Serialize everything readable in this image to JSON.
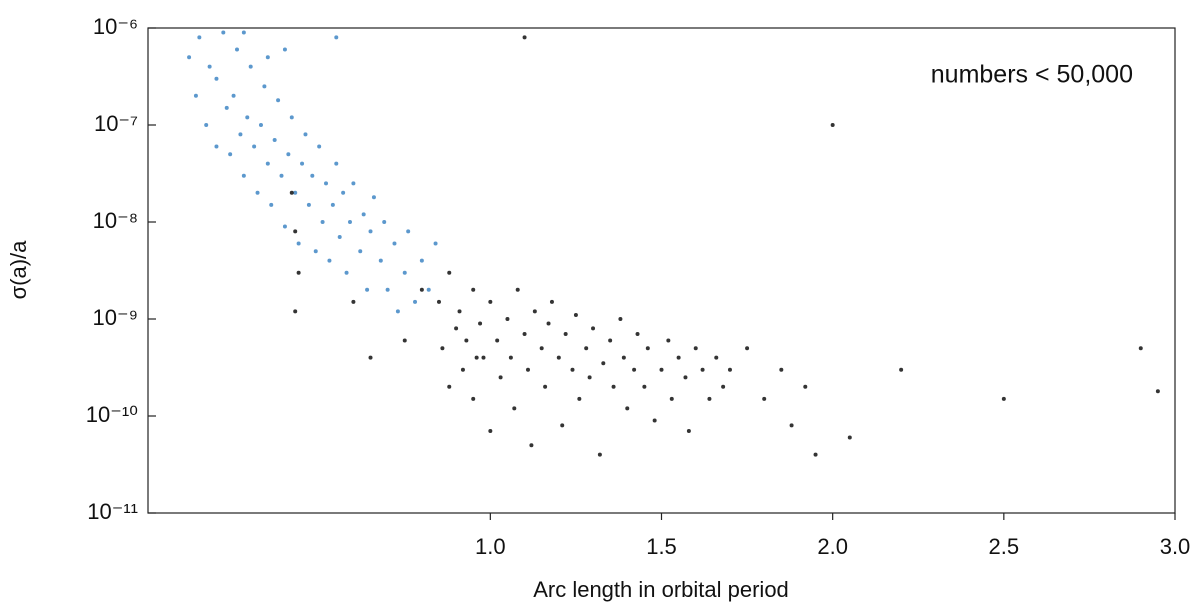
{
  "chart_data": {
    "type": "scatter",
    "annotation": "numbers < 50,000",
    "xlabel": "Arc length in orbital period",
    "ylabel": "σ(a)/a",
    "xlim": [
      0,
      3.0
    ],
    "xticks": [
      {
        "value": 1,
        "label": "1.0"
      },
      {
        "value": 1.5,
        "label": "1.5"
      },
      {
        "value": 2,
        "label": "2.0"
      },
      {
        "value": 2.5,
        "label": "2.5"
      },
      {
        "value": 3,
        "label": "3.0"
      }
    ],
    "ylim": [
      1e-11,
      1e-06
    ],
    "yticks": [
      {
        "value": 1e-06,
        "label": "10⁻⁶"
      },
      {
        "value": 1e-07,
        "label": "10⁻⁷"
      },
      {
        "value": 1e-08,
        "label": "10⁻⁸"
      },
      {
        "value": 1e-09,
        "label": "10⁻⁹"
      },
      {
        "value": 1e-10,
        "label": "10⁻¹⁰"
      },
      {
        "value": 1e-11,
        "label": "10⁻¹¹"
      }
    ],
    "log_y": true,
    "grid": false,
    "series": [
      {
        "color": "#3f86c4",
        "x": [
          0.12,
          0.14,
          0.15,
          0.17,
          0.18,
          0.2,
          0.2,
          0.22,
          0.23,
          0.24,
          0.25,
          0.26,
          0.27,
          0.28,
          0.29,
          0.3,
          0.31,
          0.32,
          0.33,
          0.34,
          0.35,
          0.36,
          0.37,
          0.38,
          0.39,
          0.4,
          0.41,
          0.42,
          0.43,
          0.44,
          0.45,
          0.46,
          0.47,
          0.48,
          0.49,
          0.5,
          0.51,
          0.52,
          0.53,
          0.54,
          0.55,
          0.56,
          0.57,
          0.58,
          0.59,
          0.6,
          0.62,
          0.63,
          0.64,
          0.65,
          0.66,
          0.68,
          0.69,
          0.7,
          0.72,
          0.73,
          0.75,
          0.76,
          0.78,
          0.8,
          0.82,
          0.84,
          0.28,
          0.4,
          0.55,
          0.35
        ],
        "y": [
          5e-07,
          2e-07,
          8e-07,
          1e-07,
          4e-07,
          6e-08,
          3e-07,
          9e-07,
          1.5e-07,
          5e-08,
          2e-07,
          6e-07,
          8e-08,
          3e-08,
          1.2e-07,
          4e-07,
          6e-08,
          2e-08,
          1e-07,
          2.5e-07,
          4e-08,
          1.5e-08,
          7e-08,
          1.8e-07,
          3e-08,
          9e-09,
          5e-08,
          1.2e-07,
          2e-08,
          6e-09,
          4e-08,
          8e-08,
          1.5e-08,
          3e-08,
          5e-09,
          6e-08,
          1e-08,
          2.5e-08,
          4e-09,
          1.5e-08,
          4e-08,
          7e-09,
          2e-08,
          3e-09,
          1e-08,
          2.5e-08,
          5e-09,
          1.2e-08,
          2e-09,
          8e-09,
          1.8e-08,
          4e-09,
          1e-08,
          2e-09,
          6e-09,
          1.2e-09,
          3e-09,
          8e-09,
          1.5e-09,
          4e-09,
          2e-09,
          6e-09,
          9e-07,
          6e-07,
          8e-07,
          5e-07
        ]
      },
      {
        "color": "#111111",
        "x": [
          0.42,
          0.43,
          0.44,
          0.43,
          0.6,
          0.65,
          0.75,
          0.8,
          0.85,
          0.86,
          0.88,
          0.88,
          0.9,
          0.91,
          0.92,
          0.93,
          0.95,
          0.95,
          0.97,
          0.98,
          1.0,
          1.0,
          1.02,
          1.03,
          1.05,
          1.06,
          1.07,
          1.08,
          1.1,
          1.11,
          1.12,
          1.13,
          1.15,
          1.16,
          1.17,
          1.18,
          1.2,
          1.21,
          1.22,
          1.24,
          1.25,
          1.26,
          1.28,
          1.29,
          1.3,
          1.32,
          1.33,
          1.35,
          1.36,
          1.38,
          1.39,
          1.4,
          1.42,
          1.43,
          1.45,
          1.46,
          1.48,
          1.5,
          1.52,
          1.53,
          1.55,
          1.57,
          1.58,
          1.6,
          1.62,
          1.64,
          1.66,
          1.68,
          1.7,
          1.75,
          1.8,
          1.85,
          1.88,
          1.92,
          1.95,
          2.05,
          2.2,
          2.5,
          2.9,
          2.95,
          1.1,
          2.0,
          0.96
        ],
        "y": [
          2e-08,
          8e-09,
          3e-09,
          1.2e-09,
          1.5e-09,
          4e-10,
          6e-10,
          2e-09,
          1.5e-09,
          5e-10,
          2e-10,
          3e-09,
          8e-10,
          1.2e-09,
          3e-10,
          6e-10,
          1.5e-10,
          2e-09,
          9e-10,
          4e-10,
          7e-11,
          1.5e-09,
          6e-10,
          2.5e-10,
          1e-09,
          4e-10,
          1.2e-10,
          2e-09,
          7e-10,
          3e-10,
          5e-11,
          1.2e-09,
          5e-10,
          2e-10,
          9e-10,
          1.5e-09,
          4e-10,
          8e-11,
          7e-10,
          3e-10,
          1.1e-09,
          1.5e-10,
          5e-10,
          2.5e-10,
          8e-10,
          4e-11,
          3.5e-10,
          6e-10,
          2e-10,
          1e-09,
          4e-10,
          1.2e-10,
          3e-10,
          7e-10,
          2e-10,
          5e-10,
          9e-11,
          3e-10,
          6e-10,
          1.5e-10,
          4e-10,
          2.5e-10,
          7e-11,
          5e-10,
          3e-10,
          1.5e-10,
          4e-10,
          2e-10,
          3e-10,
          5e-10,
          1.5e-10,
          3e-10,
          8e-11,
          2e-10,
          4e-11,
          6e-11,
          3e-10,
          1.5e-10,
          5e-10,
          1.8e-10,
          8e-07,
          1e-07,
          4e-10
        ]
      }
    ]
  }
}
